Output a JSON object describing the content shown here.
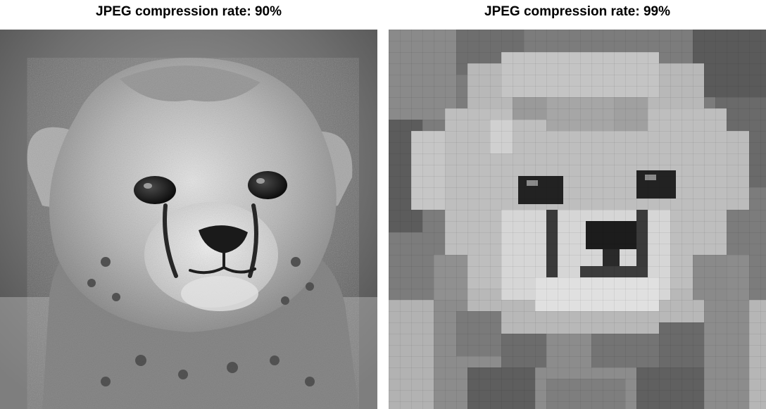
{
  "panels": [
    {
      "title": "JPEG compression rate: 90%",
      "image": "grayscale cheetah cub face, mild compression"
    },
    {
      "title": "JPEG compression rate: 99%",
      "image": "grayscale cheetah cub face, heavy blocky compression"
    }
  ],
  "colors": {
    "background": "#ffffff",
    "title_text": "#000000"
  }
}
